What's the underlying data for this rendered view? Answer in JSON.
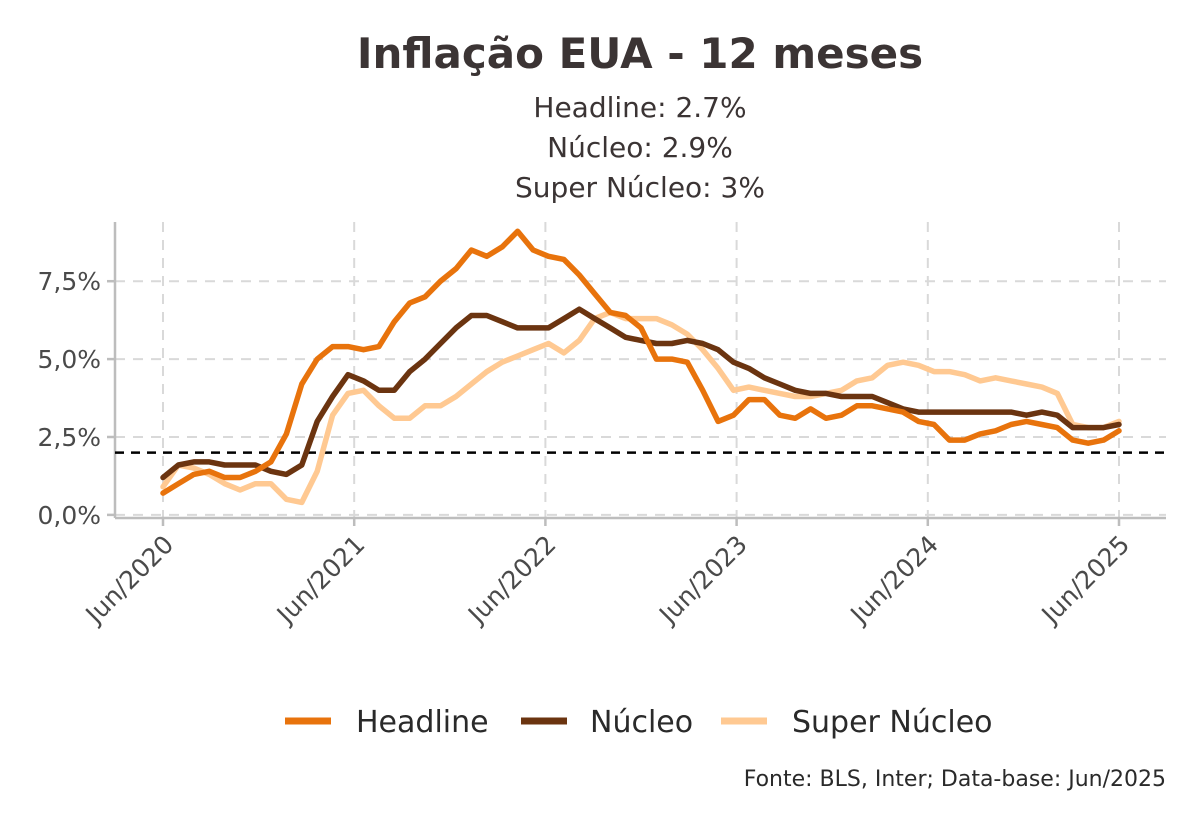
{
  "chart_data": {
    "type": "line",
    "title": "Inflação EUA - 12 meses",
    "subtitle": [
      "Headline: 2.7%",
      "Núcleo: 2.9%",
      "Super Núcleo: 3%"
    ],
    "caption": "Fonte: BLS, Inter; Data-base: Jun/2025",
    "x_start": "Jun/2020",
    "x_end": "Jun/2025",
    "x_tick_labels": [
      "Jun/2020",
      "Jun/2021",
      "Jun/2022",
      "Jun/2023",
      "Jun/2024",
      "Jun/2025"
    ],
    "y_tick_labels": [
      "0,0%",
      "2,5%",
      "5,0%",
      "7,5%"
    ],
    "y_ticks": [
      0,
      2.5,
      5,
      7.5
    ],
    "ylim": [
      -0.1,
      9.4
    ],
    "reference_line": {
      "value": 2.0,
      "style": "dashed",
      "color": "#000000"
    },
    "grid": true,
    "legend_position": "bottom",
    "series": [
      {
        "name": "Headline",
        "color": "#E8730C",
        "values": [
          0.7,
          1.0,
          1.3,
          1.4,
          1.2,
          1.2,
          1.4,
          1.7,
          2.6,
          4.2,
          5.0,
          5.4,
          5.4,
          5.3,
          5.4,
          6.2,
          6.8,
          7.0,
          7.5,
          7.9,
          8.5,
          8.3,
          8.6,
          9.1,
          8.5,
          8.3,
          8.2,
          7.7,
          7.1,
          6.5,
          6.4,
          6.0,
          5.0,
          5.0,
          4.9,
          4.0,
          3.0,
          3.2,
          3.7,
          3.7,
          3.2,
          3.1,
          3.4,
          3.1,
          3.2,
          3.5,
          3.5,
          3.4,
          3.3,
          3.0,
          2.9,
          2.4,
          2.4,
          2.6,
          2.7,
          2.9,
          3.0,
          2.9,
          2.8,
          2.4,
          2.3,
          2.4,
          2.7
        ]
      },
      {
        "name": "Núcleo",
        "color": "#6B3410",
        "values": [
          1.2,
          1.6,
          1.7,
          1.7,
          1.6,
          1.6,
          1.6,
          1.4,
          1.3,
          1.6,
          3.0,
          3.8,
          4.5,
          4.3,
          4.0,
          4.0,
          4.6,
          5.0,
          5.5,
          6.0,
          6.4,
          6.4,
          6.2,
          6.0,
          6.0,
          6.0,
          6.3,
          6.6,
          6.3,
          6.0,
          5.7,
          5.6,
          5.5,
          5.5,
          5.6,
          5.5,
          5.3,
          4.9,
          4.7,
          4.4,
          4.2,
          4.0,
          3.9,
          3.9,
          3.8,
          3.8,
          3.8,
          3.6,
          3.4,
          3.3,
          3.3,
          3.3,
          3.3,
          3.3,
          3.3,
          3.3,
          3.2,
          3.3,
          3.2,
          2.8,
          2.8,
          2.8,
          2.9
        ]
      },
      {
        "name": "Super Núcleo",
        "color": "#FFC992",
        "values": [
          0.9,
          1.6,
          1.5,
          1.3,
          1.0,
          0.8,
          1.0,
          1.0,
          0.5,
          0.4,
          1.4,
          3.2,
          3.9,
          4.0,
          3.5,
          3.1,
          3.1,
          3.5,
          3.5,
          3.8,
          4.2,
          4.6,
          4.9,
          5.1,
          5.3,
          5.5,
          5.2,
          5.6,
          6.3,
          6.5,
          6.3,
          6.3,
          6.3,
          6.1,
          5.8,
          5.3,
          4.7,
          4.0,
          4.1,
          4.0,
          3.9,
          3.8,
          3.8,
          3.9,
          4.0,
          4.3,
          4.4,
          4.8,
          4.9,
          4.8,
          4.6,
          4.6,
          4.5,
          4.3,
          4.4,
          4.3,
          4.2,
          4.1,
          3.9,
          2.9,
          2.8,
          2.8,
          3.0
        ]
      }
    ]
  }
}
